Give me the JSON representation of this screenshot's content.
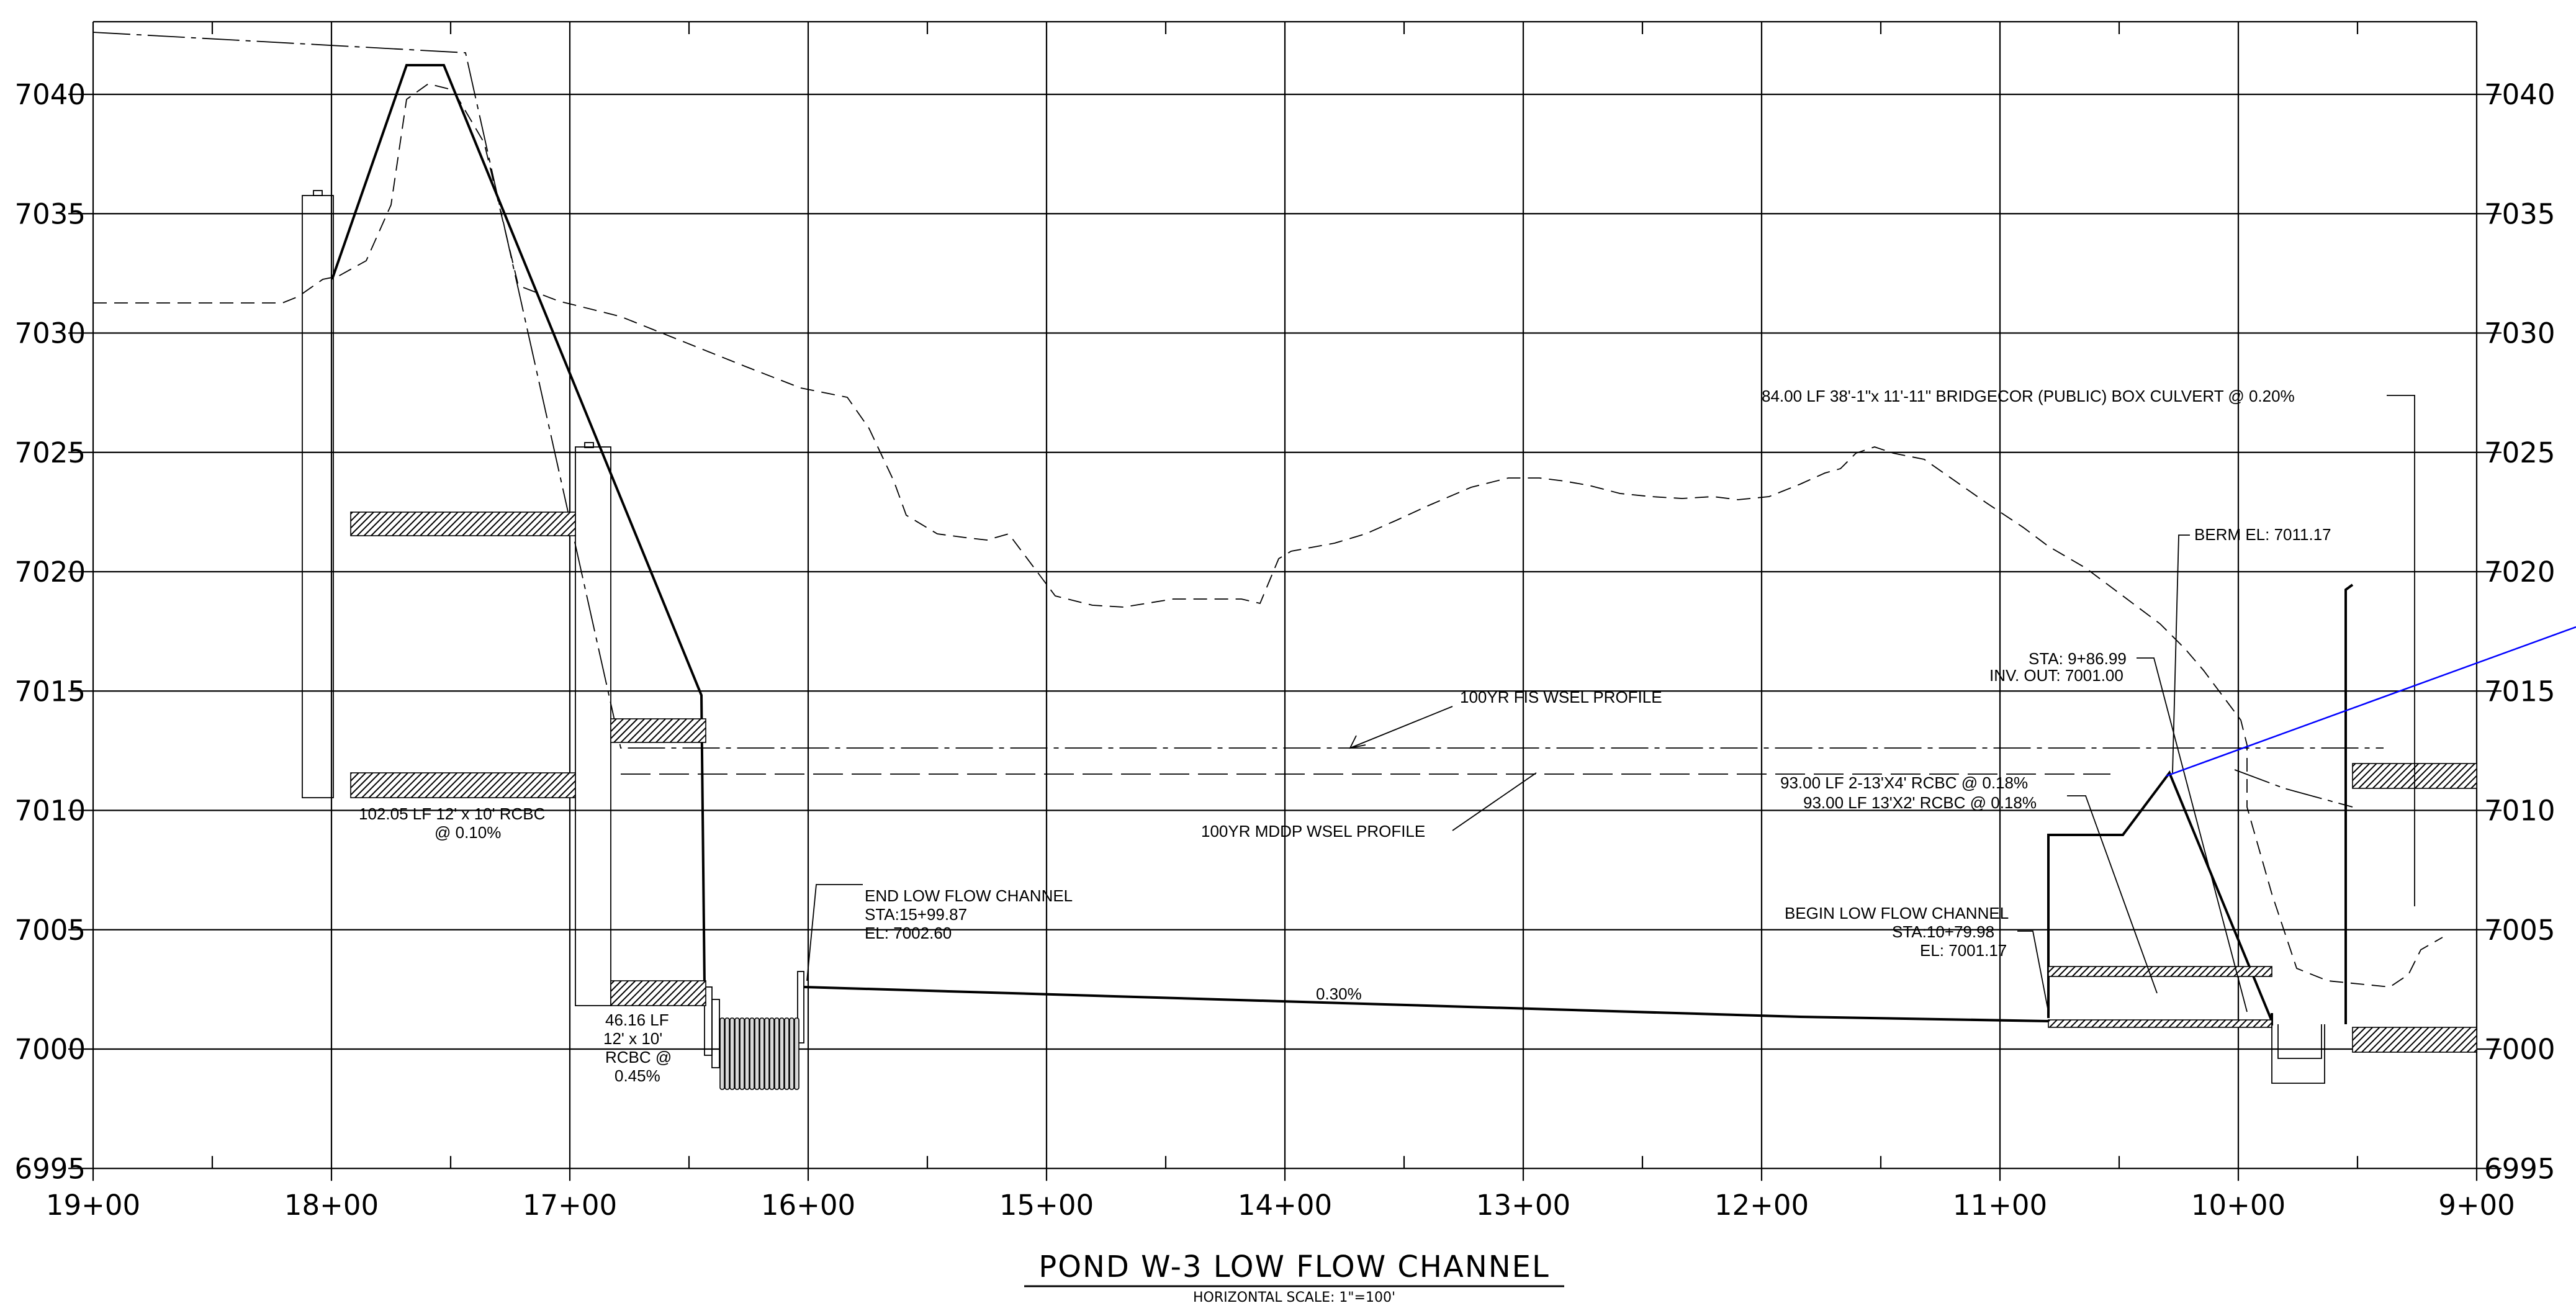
{
  "chart_data": {
    "type": "profile",
    "y_ticks": [
      "7040",
      "7035",
      "7030",
      "7025",
      "7020",
      "7015",
      "7010",
      "7005",
      "7000",
      "6995"
    ],
    "x_ticks": [
      "19+00",
      "18+00",
      "17+00",
      "16+00",
      "15+00",
      "14+00",
      "13+00",
      "12+00",
      "11+00",
      "10+00",
      "9+00"
    ],
    "ylim": [
      6995,
      7043
    ],
    "xlim_station": [
      1900,
      900
    ],
    "grid": true
  },
  "title": {
    "main": "POND W-3 LOW FLOW CHANNEL",
    "scale": "HORIZONTAL SCALE: 1\"=100'"
  },
  "annotations": {
    "rcbc_102_l1": "102.05 LF 12' x 10' RCBC",
    "rcbc_102_l2": "@ 0.10%",
    "rcbc_46_l1": "46.16 LF",
    "rcbc_46_l2": "12' x 10'",
    "rcbc_46_l3": "RCBC @",
    "rcbc_46_l4": "0.45%",
    "end_lfc_l1": "END LOW FLOW CHANNEL",
    "end_lfc_l2": "STA:15+99.87",
    "end_lfc_l3": "EL: 7002.60",
    "slope": "0.30%",
    "fis_wsel": "100YR FIS WSEL PROFILE",
    "mddp_wsel": "100YR MDDP WSEL PROFILE",
    "bridgecor": "84.00 LF 38'-1\"x 11'-11\" BRIDGECOR (PUBLIC) BOX CULVERT @ 0.20%",
    "berm": "BERM EL: 7011.17",
    "sta_l1": "STA: 9+86.99",
    "sta_l2": "INV. OUT: 7001.00",
    "rcbc_93_l1": "93.00 LF 2-13'X4' RCBC @ 0.18%",
    "rcbc_93_l2": "93.00 LF 13'X2' RCBC @ 0.18%",
    "begin_lfc_l1": "BEGIN LOW FLOW CHANNEL",
    "begin_lfc_l2": "STA:10+79.98",
    "begin_lfc_l3": "EL: 7001.17"
  }
}
